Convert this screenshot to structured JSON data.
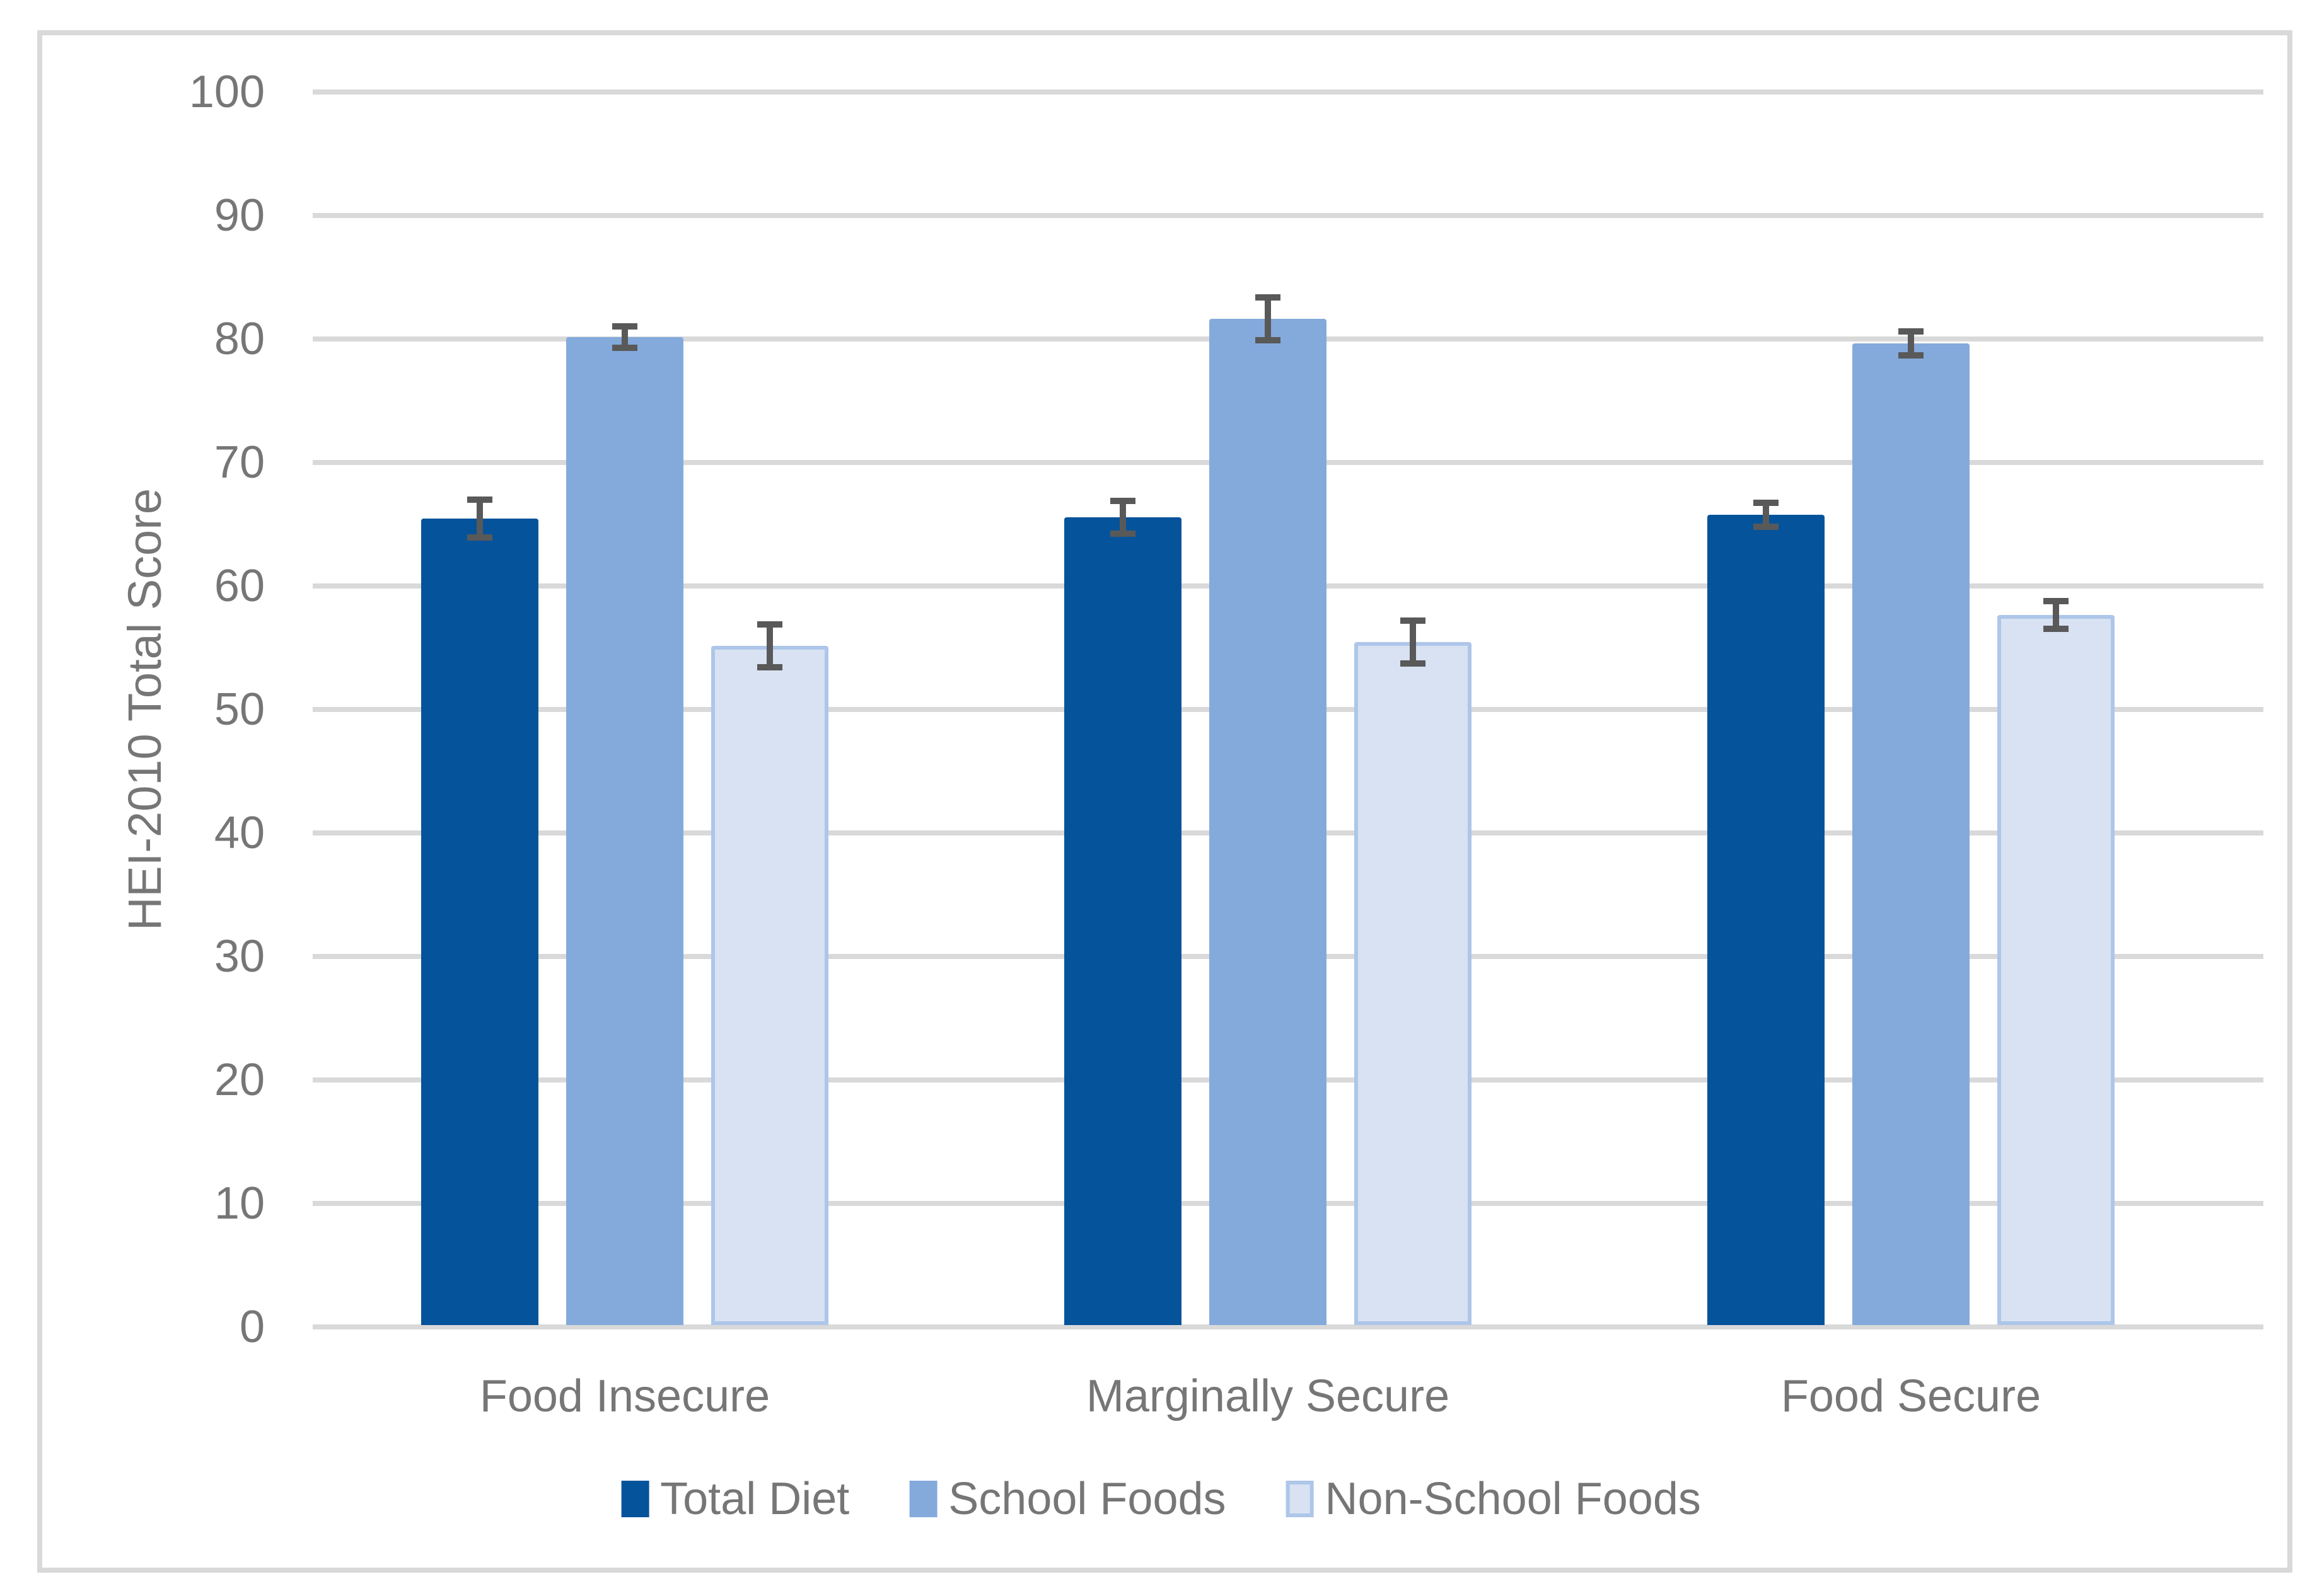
{
  "chart_data": {
    "type": "bar",
    "title": "",
    "xlabel": "",
    "ylabel": "HEI-2010 Total Score",
    "ylim": [
      0,
      100
    ],
    "yticks": [
      0,
      10,
      20,
      30,
      40,
      50,
      60,
      70,
      80,
      90,
      100
    ],
    "grid": true,
    "legend_position": "bottom",
    "categories": [
      "Food Insecure",
      "Marginally Secure",
      "Food Secure"
    ],
    "series": [
      {
        "name": "Total Diet",
        "color": "#05539b",
        "values": [
          65.3,
          65.4,
          65.6
        ],
        "error_bars": [
          1.8,
          1.6,
          1.2
        ]
      },
      {
        "name": "School Foods",
        "color": "#84aadc",
        "values": [
          80.0,
          81.5,
          79.5
        ],
        "error_bars": [
          1.1,
          2.0,
          1.2
        ]
      },
      {
        "name": "Non-School Foods",
        "color": "#d8e2f2",
        "border_color": "#adc6e9",
        "values": [
          55.0,
          55.3,
          57.5
        ],
        "error_bars": [
          2.0,
          2.0,
          1.4
        ]
      }
    ],
    "colors": {
      "error_bar": "#595959",
      "gridline": "#d9d9d9",
      "axis_line": "#d9d9d9",
      "frame_border": "#d9d9d9",
      "text": "#767676",
      "background": "#ffffff"
    }
  }
}
